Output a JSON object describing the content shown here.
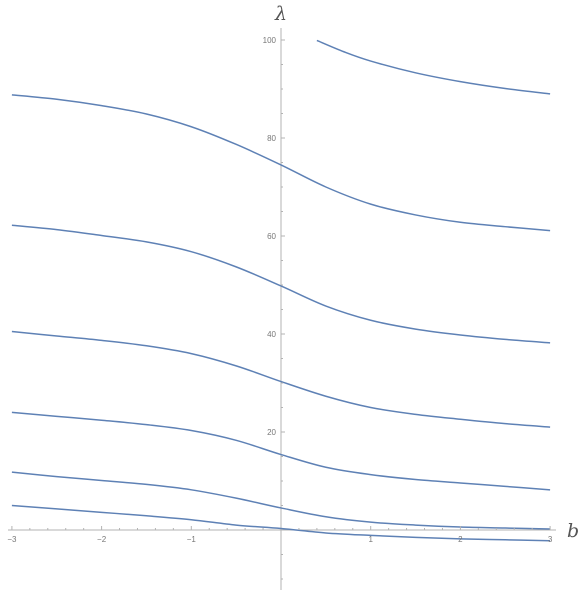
{
  "chart_data": {
    "type": "line",
    "xlabel": "b",
    "ylabel": "λ",
    "xlim": [
      -3,
      3
    ],
    "ylim": [
      -12,
      105
    ],
    "x_ticks": [
      -3,
      -2,
      -1,
      1,
      2,
      3
    ],
    "x_tick_labels": [
      "−3",
      "−2",
      "−1",
      "1",
      "2",
      "3"
    ],
    "y_ticks": [
      20,
      40,
      60,
      80,
      100
    ],
    "y_tick_labels": [
      "20",
      "40",
      "60",
      "80",
      "100"
    ],
    "grid": false,
    "line_color": "#5e81b5",
    "series": [
      {
        "x": [
          -3,
          -2.5,
          -2,
          -1.5,
          -1,
          -0.5,
          0,
          0.5,
          1,
          1.5,
          2,
          2.5,
          3
        ],
        "y": [
          5,
          4.3,
          3.6,
          2.9,
          2.1,
          1.0,
          0.3,
          -0.6,
          -1.1,
          -1.5,
          -1.8,
          -2.0,
          -2.2
        ]
      },
      {
        "x": [
          -3,
          -2.5,
          -2,
          -1.5,
          -1,
          -0.5,
          0,
          0.5,
          1,
          1.5,
          2,
          2.5,
          3
        ],
        "y": [
          11.8,
          10.9,
          10.1,
          9.3,
          8.2,
          6.5,
          4.5,
          2.7,
          1.6,
          1.0,
          0.6,
          0.4,
          0.2
        ]
      },
      {
        "x": [
          -3,
          -2.5,
          -2,
          -1.5,
          -1,
          -0.5,
          0,
          0.5,
          1,
          1.5,
          2,
          2.5,
          3
        ],
        "y": [
          24,
          23.2,
          22.4,
          21.5,
          20.3,
          18.3,
          15.4,
          12.8,
          11.3,
          10.3,
          9.6,
          8.9,
          8.2
        ]
      },
      {
        "x": [
          -3,
          -2.5,
          -2,
          -1.5,
          -1,
          -0.5,
          0,
          0.5,
          1,
          1.5,
          2,
          2.5,
          3
        ],
        "y": [
          40.5,
          39.6,
          38.7,
          37.6,
          36.0,
          33.5,
          30.3,
          27.3,
          25.0,
          23.6,
          22.6,
          21.7,
          21.0
        ]
      },
      {
        "x": [
          -3,
          -2.5,
          -2,
          -1.5,
          -1,
          -0.5,
          0,
          0.5,
          1,
          1.5,
          2,
          2.5,
          3
        ],
        "y": [
          62.2,
          61.3,
          60.1,
          58.8,
          56.8,
          53.7,
          49.8,
          45.7,
          42.8,
          41.0,
          39.8,
          38.9,
          38.2
        ]
      },
      {
        "x": [
          -3,
          -2.5,
          -2,
          -1.5,
          -1,
          -0.5,
          0,
          0.5,
          1,
          1.5,
          2,
          2.5,
          3
        ],
        "y": [
          88.8,
          87.9,
          86.6,
          84.9,
          82.3,
          78.7,
          74.5,
          70.0,
          66.5,
          64.3,
          62.8,
          61.9,
          61.1
        ]
      },
      {
        "x": [
          0.4,
          0.7,
          1,
          1.5,
          2,
          2.5,
          3
        ],
        "y": [
          99.9,
          97.6,
          95.7,
          93.3,
          91.5,
          90.1,
          89.0
        ]
      }
    ]
  }
}
